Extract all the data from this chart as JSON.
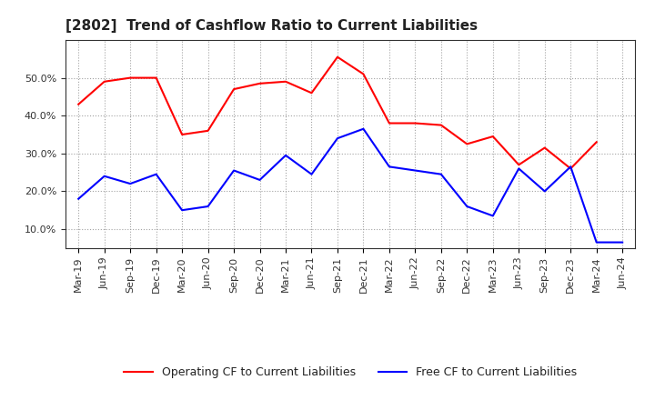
{
  "title": "[2802]  Trend of Cashflow Ratio to Current Liabilities",
  "x_labels": [
    "Mar-19",
    "Jun-19",
    "Sep-19",
    "Dec-19",
    "Mar-20",
    "Jun-20",
    "Sep-20",
    "Dec-20",
    "Mar-21",
    "Jun-21",
    "Sep-21",
    "Dec-21",
    "Mar-22",
    "Jun-22",
    "Sep-22",
    "Dec-22",
    "Mar-23",
    "Jun-23",
    "Sep-23",
    "Dec-23",
    "Mar-24",
    "Jun-24"
  ],
  "operating_cf": [
    43.0,
    49.0,
    50.0,
    50.0,
    35.0,
    36.0,
    47.0,
    48.5,
    49.0,
    46.0,
    55.5,
    51.0,
    38.0,
    38.0,
    37.5,
    32.5,
    34.5,
    27.0,
    31.5,
    26.0,
    33.0,
    null
  ],
  "free_cf": [
    18.0,
    24.0,
    22.0,
    24.5,
    15.0,
    16.0,
    25.5,
    23.0,
    29.5,
    24.5,
    34.0,
    36.5,
    26.5,
    25.5,
    24.5,
    16.0,
    13.5,
    26.0,
    20.0,
    26.5,
    6.5,
    6.5
  ],
  "operating_color": "#FF0000",
  "free_color": "#0000FF",
  "ylim_min": 5.0,
  "ylim_max": 60.0,
  "yticks": [
    10.0,
    20.0,
    30.0,
    40.0,
    50.0
  ],
  "background_color": "#FFFFFF",
  "grid_color": "#999999",
  "title_fontsize": 11,
  "tick_fontsize": 8,
  "legend_fontsize": 9
}
